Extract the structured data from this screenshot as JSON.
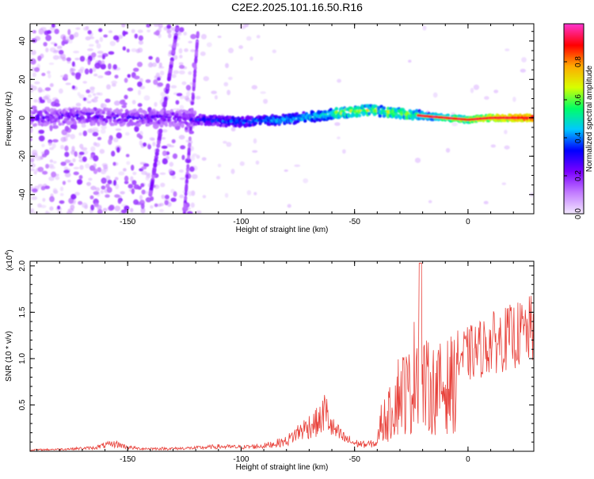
{
  "title": "C2E2.2025.101.16.50.R16",
  "colors": {
    "line": "#e8413a",
    "axis": "#000000",
    "colormap": [
      "#f2e6ff",
      "#c27bff",
      "#7a00ff",
      "#0000ff",
      "#00c8ff",
      "#00ff66",
      "#d8ff00",
      "#ffaa00",
      "#ff0000",
      "#ff33cc"
    ]
  },
  "chart_data": [
    {
      "type": "heatmap",
      "xlabel": "Height of straight line (km)",
      "ylabel": "Frequency (Hz)",
      "xlim": [
        -193,
        29
      ],
      "ylim": [
        -50,
        49
      ],
      "xticks": [
        -150,
        -100,
        -50,
        0
      ],
      "yticks": [
        -40,
        -20,
        0,
        20,
        40
      ],
      "colorbar": {
        "label": "Normalized spectral amplitude",
        "range": [
          0,
          1
        ],
        "ticks": [
          0.0,
          0.2,
          0.4,
          0.6,
          0.8
        ]
      },
      "ridge": {
        "x": [
          -193,
          -170,
          -150,
          -130,
          -120,
          -100,
          -80,
          -60,
          -45,
          -35,
          -20,
          -10,
          0,
          10,
          29
        ],
        "y": [
          0,
          1,
          0,
          0,
          -1,
          -2,
          -1,
          2,
          4,
          3,
          1,
          0,
          -1,
          0,
          0
        ]
      }
    },
    {
      "type": "line",
      "xlabel": "Height of straight line (km)",
      "ylabel": "SNR (10 * v/v)",
      "y_multiplier": "(x10",
      "y_multiplier_exp": "4",
      "xlim": [
        -193,
        29
      ],
      "ylim": [
        0,
        2.05
      ],
      "xticks": [
        -150,
        -100,
        -50,
        0
      ],
      "yticks": [
        0.5,
        1.0,
        1.5,
        2.0
      ],
      "series": [
        {
          "x": [
            -193,
            -180,
            -165,
            -160,
            -155,
            -150,
            -145,
            -130,
            -120,
            -110,
            -100,
            -90,
            -80,
            -75,
            -70,
            -65,
            -63,
            -60,
            -55,
            -50,
            -45,
            -40,
            -38,
            -35,
            -30,
            -25,
            -22,
            -20,
            -18,
            -15,
            -10,
            -5,
            0,
            5,
            10,
            15,
            20,
            25,
            29
          ],
          "envelope": [
            0.02,
            0.03,
            0.05,
            0.09,
            0.11,
            0.06,
            0.04,
            0.04,
            0.05,
            0.07,
            0.06,
            0.08,
            0.15,
            0.28,
            0.38,
            0.45,
            0.62,
            0.35,
            0.2,
            0.12,
            0.1,
            0.12,
            0.55,
            0.65,
            1.15,
            1.1,
            1.95,
            1.25,
            1.2,
            1.15,
            1.2,
            1.3,
            1.35,
            1.42,
            1.5,
            1.55,
            1.6,
            1.65,
            1.7
          ]
        }
      ]
    }
  ]
}
